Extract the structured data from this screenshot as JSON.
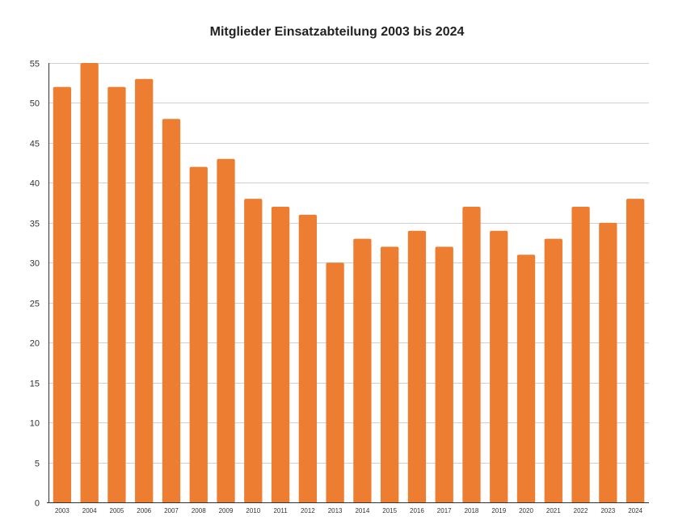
{
  "chart_data": {
    "type": "bar",
    "title": "Mitglieder Einsatzabteilung 2003 bis 2024",
    "xlabel": "",
    "ylabel": "",
    "categories": [
      "2003",
      "2004",
      "2005",
      "2006",
      "2007",
      "2008",
      "2009",
      "2010",
      "2011",
      "2012",
      "2013",
      "2014",
      "2015",
      "2016",
      "2017",
      "2018",
      "2019",
      "2020",
      "2021",
      "2022",
      "2023",
      "2024"
    ],
    "values": [
      52,
      55,
      52,
      53,
      48,
      42,
      43,
      38,
      37,
      36,
      30,
      33,
      32,
      34,
      32,
      37,
      34,
      31,
      33,
      37,
      35,
      38
    ],
    "ylim": [
      0,
      55
    ],
    "yticks": [
      0,
      5,
      10,
      15,
      20,
      25,
      30,
      35,
      40,
      45,
      50,
      55
    ],
    "grid": true,
    "legend": "none",
    "colors": {
      "bar": "#ed7d31",
      "grid": "#d0d0d0",
      "axis": "#333333"
    }
  }
}
